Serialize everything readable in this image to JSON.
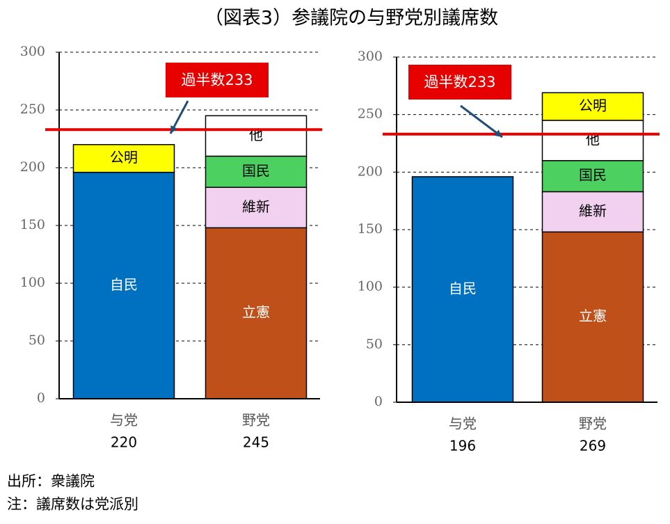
{
  "title": "（図表3）参議院の与野党別議席数",
  "notes": [
    "出所：衆議院",
    "注：議席数は党派別"
  ],
  "chart_data": [
    {
      "type": "stacked_bar",
      "categories": [
        "与党",
        "野党"
      ],
      "totals": [
        220,
        245
      ],
      "series": [
        {
          "name": "自民",
          "color": "#0070c0",
          "values": [
            196,
            null
          ]
        },
        {
          "name": "立憲",
          "color": "#c0501a",
          "values": [
            null,
            148
          ]
        },
        {
          "name": "維新",
          "color": "#f2d0f0",
          "values": [
            null,
            35
          ]
        },
        {
          "name": "国民",
          "color": "#4cd160",
          "values": [
            null,
            27
          ]
        },
        {
          "name": "他",
          "color": "#ffffff",
          "values": [
            null,
            35
          ]
        },
        {
          "name": "公明",
          "color": "#ffff00",
          "values": [
            24,
            null
          ]
        }
      ],
      "ylim": [
        0,
        300
      ],
      "yticks": [
        0,
        50,
        100,
        150,
        200,
        250,
        300
      ],
      "grid": true,
      "majority_line": {
        "value": 233,
        "label": "過半数233",
        "color": "#e60000"
      }
    },
    {
      "type": "stacked_bar",
      "categories": [
        "与党",
        "野党"
      ],
      "totals": [
        196,
        269
      ],
      "series": [
        {
          "name": "自民",
          "color": "#0070c0",
          "values": [
            196,
            null
          ]
        },
        {
          "name": "立憲",
          "color": "#c0501a",
          "values": [
            null,
            148
          ]
        },
        {
          "name": "維新",
          "color": "#f2d0f0",
          "values": [
            null,
            35
          ]
        },
        {
          "name": "国民",
          "color": "#4cd160",
          "values": [
            null,
            27
          ]
        },
        {
          "name": "他",
          "color": "#ffffff",
          "values": [
            null,
            35
          ]
        },
        {
          "name": "公明",
          "color": "#ffff00",
          "values": [
            null,
            24
          ]
        }
      ],
      "ylim": [
        0,
        300
      ],
      "yticks": [
        0,
        50,
        100,
        150,
        200,
        250,
        300
      ],
      "grid": true,
      "majority_line": {
        "value": 233,
        "label": "過半数233",
        "color": "#e60000"
      }
    }
  ]
}
